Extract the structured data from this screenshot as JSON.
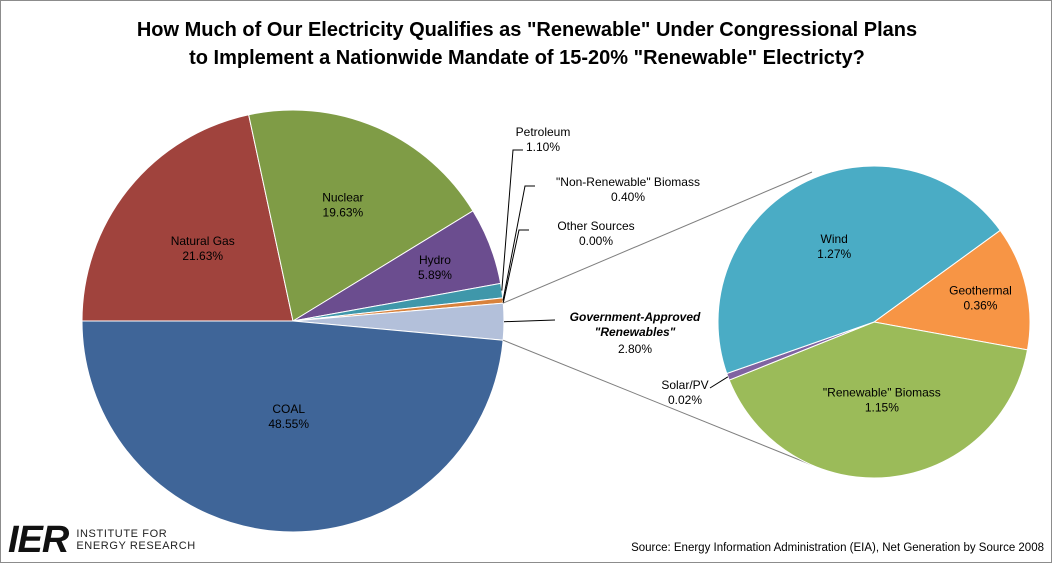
{
  "title_lines": [
    "How Much of Our Electricity Qualifies as \"Renewable\" Under Congressional Plans",
    "to Implement a Nationwide Mandate of 15-20% \"Renewable\" Electricty?"
  ],
  "source": "Source: Energy Information Administration (EIA), Net Generation by Source 2008",
  "logo": {
    "mark": "IER",
    "line1": "INSTITUTE FOR",
    "line2": "ENERGY RESEARCH"
  },
  "colors": {
    "coal": "#3f6598",
    "natural_gas": "#a0433d",
    "nuclear": "#7f9c46",
    "hydro": "#6b4d8f",
    "petroleum": "#3f97aa",
    "non_renewable_biomass": "#d8823c",
    "other_sources": "#c0c0c0",
    "renewables": "#b3c0da",
    "wind": "#4aacc5",
    "geothermal": "#f79545",
    "renewable_biomass": "#9bbb59",
    "solar_pv": "#8063a1",
    "connector": "#7f7f7f"
  },
  "chart_data": [
    {
      "type": "pie",
      "name": "main",
      "slices": [
        {
          "label": "COAL",
          "value": 48.55,
          "value_label": "48.55%"
        },
        {
          "label": "Natural Gas",
          "value": 21.63,
          "value_label": "21.63%"
        },
        {
          "label": "Nuclear",
          "value": 19.63,
          "value_label": "19.63%"
        },
        {
          "label": "Hydro",
          "value": 5.89,
          "value_label": "5.89%"
        },
        {
          "label": "Petroleum",
          "value": 1.1,
          "value_label": "1.10%"
        },
        {
          "label": "\"Non-Renewable\" Biomass",
          "value": 0.4,
          "value_label": "0.40%"
        },
        {
          "label": "Other Sources",
          "value": 0.0,
          "value_label": "0.00%"
        },
        {
          "label_lines": [
            "Government-Approved",
            "\"Renewables\""
          ],
          "value": 2.8,
          "value_label": "2.80%"
        }
      ]
    },
    {
      "type": "pie",
      "name": "renewables-breakdown",
      "slices": [
        {
          "label": "Wind",
          "value": 1.27,
          "value_label": "1.27%"
        },
        {
          "label": "Geothermal",
          "value": 0.36,
          "value_label": "0.36%"
        },
        {
          "label": "\"Renewable\" Biomass",
          "value": 1.15,
          "value_label": "1.15%"
        },
        {
          "label": "Solar/PV",
          "value": 0.02,
          "value_label": "0.02%"
        }
      ]
    }
  ]
}
